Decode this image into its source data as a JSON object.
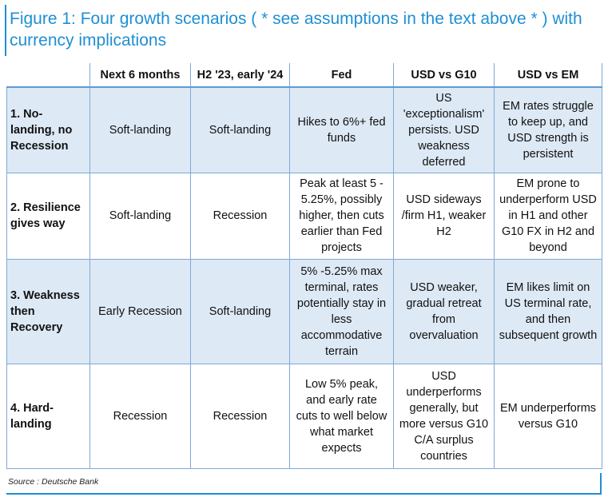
{
  "figure": {
    "title": "Figure 1: Four growth scenarios ( * see assumptions in the text above * ) with currency implications",
    "source": "Source : Deutsche Bank"
  },
  "table": {
    "headers": [
      "",
      "Next 6 months",
      "H2 '23, early '24",
      "Fed",
      "USD vs G10",
      "USD vs EM"
    ],
    "rows": [
      {
        "scenario": "1. No-landing, no Recession",
        "next6": "Soft-landing",
        "h2": "Soft-landing",
        "fed": "Hikes to 6%+ fed funds",
        "usd_g10": "US 'exceptionalism' persists. USD weakness deferred",
        "usd_em": "EM rates struggle to keep up, and USD strength is persistent"
      },
      {
        "scenario": "2. Resilience gives way",
        "next6": "Soft-landing",
        "h2": "Recession",
        "fed": "Peak at least 5 - 5.25%, possibly higher, then cuts earlier than Fed projects",
        "usd_g10": "USD sideways /firm H1, weaker H2",
        "usd_em": "EM prone to underperform USD in H1 and other G10 FX in H2 and beyond"
      },
      {
        "scenario": "3. Weakness then Recovery",
        "next6": "Early Recession",
        "h2": "Soft-landing",
        "fed": "5% -5.25% max terminal, rates potentially stay in less accommodative terrain",
        "usd_g10": "USD weaker, gradual retreat from overvaluation",
        "usd_em": "EM likes limit on US terminal rate, and then subsequent growth"
      },
      {
        "scenario": "4. Hard-landing",
        "next6": "Recession",
        "h2": "Recession",
        "fed": "Low 5% peak, and early rate cuts to well below what market expects",
        "usd_g10": "USD underperforms generally, but more versus G10 C/A surplus countries",
        "usd_em": "EM underperforms versus G10"
      }
    ]
  },
  "colors": {
    "accent": "#1f8fd2",
    "row_shade": "#dde9f5",
    "grid": "#7fa9d6"
  }
}
